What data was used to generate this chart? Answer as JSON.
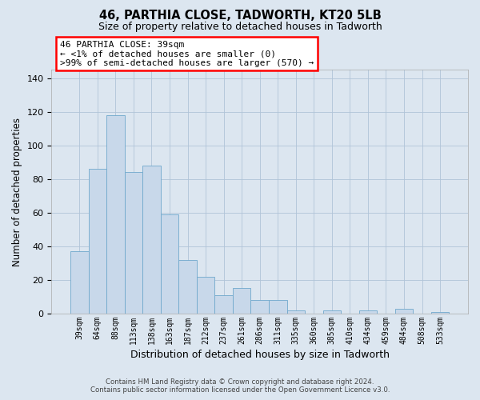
{
  "title": "46, PARTHIA CLOSE, TADWORTH, KT20 5LB",
  "subtitle": "Size of property relative to detached houses in Tadworth",
  "xlabel": "Distribution of detached houses by size in Tadworth",
  "ylabel": "Number of detached properties",
  "bar_color": "#c8d8ea",
  "bar_edge_color": "#6fa8cc",
  "categories": [
    "39sqm",
    "64sqm",
    "88sqm",
    "113sqm",
    "138sqm",
    "163sqm",
    "187sqm",
    "212sqm",
    "237sqm",
    "261sqm",
    "286sqm",
    "311sqm",
    "335sqm",
    "360sqm",
    "385sqm",
    "410sqm",
    "434sqm",
    "459sqm",
    "484sqm",
    "508sqm",
    "533sqm"
  ],
  "values": [
    37,
    86,
    118,
    84,
    88,
    59,
    32,
    22,
    11,
    15,
    8,
    8,
    2,
    0,
    2,
    0,
    2,
    0,
    3,
    0,
    1
  ],
  "ylim": [
    0,
    145
  ],
  "yticks": [
    0,
    20,
    40,
    60,
    80,
    100,
    120,
    140
  ],
  "annotation_line1": "46 PARTHIA CLOSE: 39sqm",
  "annotation_line2": "← <1% of detached houses are smaller (0)",
  "annotation_line3": ">99% of semi-detached houses are larger (570) →",
  "footer_line1": "Contains HM Land Registry data © Crown copyright and database right 2024.",
  "footer_line2": "Contains public sector information licensed under the Open Government Licence v3.0.",
  "background_color": "#dce6f0",
  "plot_bg_color": "#dce6f0",
  "grid_color": "#b0c4d8"
}
